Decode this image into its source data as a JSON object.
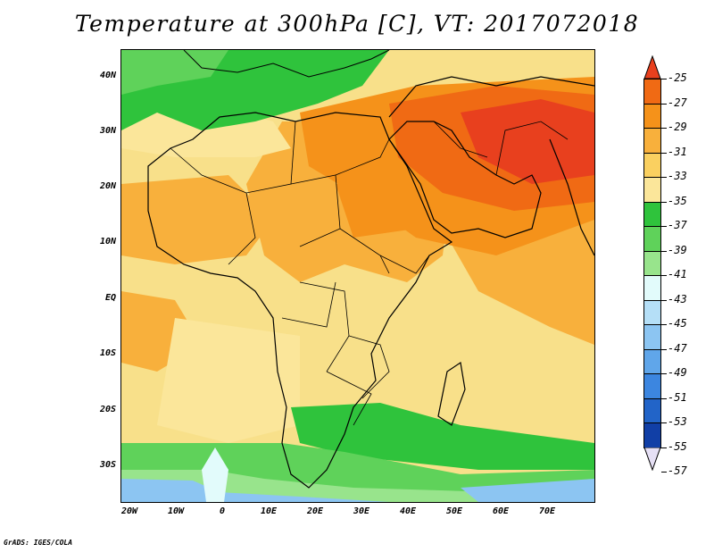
{
  "title": "Temperature at 300hPa [C], VT: 2017072018",
  "footer": "GrADS: IGES/COLA",
  "map": {
    "lat_ticks": [
      "40N",
      "30N",
      "20N",
      "10N",
      "EQ",
      "10S",
      "20S",
      "30S"
    ],
    "lon_ticks": [
      "20W",
      "10W",
      "0",
      "10E",
      "20E",
      "30E",
      "40E",
      "50E",
      "60E",
      "70E"
    ]
  },
  "colorbar": {
    "labels": [
      "-25",
      "-27",
      "-29",
      "-31",
      "-33",
      "-35",
      "-37",
      "-39",
      "-41",
      "-43",
      "-45",
      "-47",
      "-49",
      "-51",
      "-53",
      "-55",
      "-57"
    ],
    "colors": [
      "#e8401e",
      "#f06a14",
      "#f5921a",
      "#f8b03c",
      "#fad060",
      "#fbe69a",
      "#2fc33c",
      "#5fd25a",
      "#98e48c",
      "#e2fbfb",
      "#b5dff7",
      "#8cc5f2",
      "#60a6ea",
      "#3c86e0",
      "#2264c8",
      "#113fa6",
      "#0b1a78"
    ]
  }
}
